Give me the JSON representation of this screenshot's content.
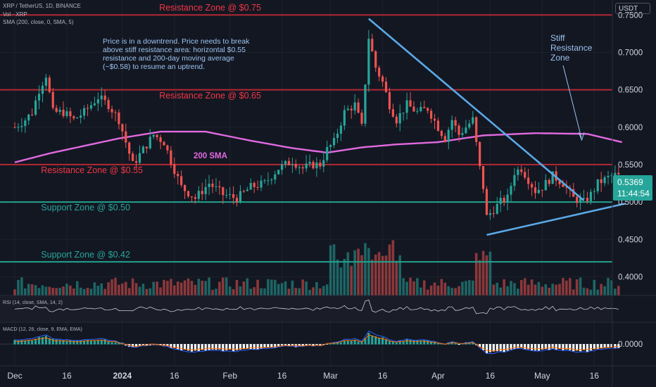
{
  "header": {
    "symbol_line": "XRP / TetherUS, 1D, BINANCE",
    "volume_indicator": "Vol · XRP",
    "sma_indicator": "SMA (200, close, 0, SMA, 5)",
    "currency": "USDT"
  },
  "annotations": {
    "main_note": "Price is in a downtrend. Price needs to break\nabove stiff resistance area: horizontal $0.55\nresistance and 200-day moving average\n(~$0.58) to resume an uptrend.",
    "stiff_note": "Stiff\nResistance\nZone",
    "sma_label": "200 SMA"
  },
  "zones": [
    {
      "label": "Resistance Zone @ $0.75",
      "price": 0.75,
      "color": "#b22833",
      "text_color": "#f23645",
      "label_x_frac": 0.26,
      "label_below": false
    },
    {
      "label": "Resistance Zone @ $0.65",
      "price": 0.65,
      "color": "#b22833",
      "text_color": "#f23645",
      "label_x_frac": 0.26,
      "label_below": true
    },
    {
      "label": "Resistance Zone @ $0.55",
      "price": 0.55,
      "color": "#b22833",
      "text_color": "#f23645",
      "label_x_frac": 0.067,
      "label_below": true
    },
    {
      "label": "Support Zone @ $0.50",
      "price": 0.5,
      "color": "#22a28d",
      "text_color": "#26a69a",
      "label_x_frac": 0.067,
      "label_below": true
    },
    {
      "label": "Support Zone @ $0.42",
      "price": 0.42,
      "color": "#22a28d",
      "text_color": "#26a69a",
      "label_x_frac": 0.067,
      "label_below": false
    }
  ],
  "price_badge": {
    "price": "0.5369",
    "countdown": "11:44:54",
    "color": "#26a69a"
  },
  "rsi_pane": {
    "label": "RSI (14, close, SMA, 14, 2)"
  },
  "macd_pane": {
    "label": "MACD (12, 26, close, 9, EMA, EMA)",
    "zero_label": "0.0000"
  },
  "chart_data": {
    "type": "candlestick",
    "symbol": "XRP / TetherUS",
    "interval": "1D",
    "exchange": "BINANCE",
    "ylim": [
      0.375,
      0.77
    ],
    "yticks": [
      "0.7500",
      "0.7000",
      "0.6500",
      "0.6000",
      "0.5500",
      "0.5000",
      "0.4500",
      "0.4000"
    ],
    "xticks": [
      {
        "label": "Dec",
        "day": 0
      },
      {
        "label": "16",
        "day": 15
      },
      {
        "label": "2024",
        "day": 31
      },
      {
        "label": "16",
        "day": 46
      },
      {
        "label": "Feb",
        "day": 62
      },
      {
        "label": "16",
        "day": 77
      },
      {
        "label": "Mar",
        "day": 91
      },
      {
        "label": "16",
        "day": 106
      },
      {
        "label": "Apr",
        "day": 122
      },
      {
        "label": "16",
        "day": 137
      },
      {
        "label": "May",
        "day": 152
      },
      {
        "label": "16",
        "day": 167
      }
    ],
    "close_anchors": [
      [
        0,
        0.6
      ],
      [
        3,
        0.61
      ],
      [
        5,
        0.62
      ],
      [
        7,
        0.65
      ],
      [
        9,
        0.67
      ],
      [
        11,
        0.62
      ],
      [
        14,
        0.62
      ],
      [
        17,
        0.61
      ],
      [
        20,
        0.62
      ],
      [
        24,
        0.64
      ],
      [
        27,
        0.63
      ],
      [
        30,
        0.61
      ],
      [
        32,
        0.58
      ],
      [
        34,
        0.55
      ],
      [
        37,
        0.57
      ],
      [
        40,
        0.59
      ],
      [
        43,
        0.58
      ],
      [
        45,
        0.555
      ],
      [
        48,
        0.52
      ],
      [
        52,
        0.505
      ],
      [
        56,
        0.525
      ],
      [
        60,
        0.51
      ],
      [
        64,
        0.505
      ],
      [
        68,
        0.52
      ],
      [
        72,
        0.525
      ],
      [
        76,
        0.545
      ],
      [
        80,
        0.555
      ],
      [
        83,
        0.545
      ],
      [
        86,
        0.55
      ],
      [
        88,
        0.55
      ],
      [
        90,
        0.57
      ],
      [
        92,
        0.58
      ],
      [
        95,
        0.62
      ],
      [
        98,
        0.63
      ],
      [
        100,
        0.6
      ],
      [
        102,
        0.72
      ],
      [
        104,
        0.68
      ],
      [
        106,
        0.66
      ],
      [
        108,
        0.63
      ],
      [
        110,
        0.61
      ],
      [
        113,
        0.63
      ],
      [
        116,
        0.62
      ],
      [
        119,
        0.625
      ],
      [
        122,
        0.6
      ],
      [
        124,
        0.585
      ],
      [
        126,
        0.61
      ],
      [
        128,
        0.59
      ],
      [
        130,
        0.6
      ],
      [
        132,
        0.61
      ],
      [
        134,
        0.545
      ],
      [
        135,
        0.52
      ],
      [
        136,
        0.48
      ],
      [
        138,
        0.49
      ],
      [
        140,
        0.5
      ],
      [
        142,
        0.505
      ],
      [
        144,
        0.54
      ],
      [
        146,
        0.545
      ],
      [
        148,
        0.53
      ],
      [
        150,
        0.515
      ],
      [
        152,
        0.52
      ],
      [
        155,
        0.535
      ],
      [
        158,
        0.525
      ],
      [
        161,
        0.505
      ],
      [
        164,
        0.5
      ],
      [
        166,
        0.51
      ],
      [
        168,
        0.525
      ],
      [
        170,
        0.53
      ],
      [
        172,
        0.535
      ],
      [
        174,
        0.5369
      ]
    ],
    "sma200_anchors": [
      [
        0,
        0.553
      ],
      [
        10,
        0.565
      ],
      [
        20,
        0.575
      ],
      [
        30,
        0.585
      ],
      [
        42,
        0.594
      ],
      [
        55,
        0.594
      ],
      [
        68,
        0.582
      ],
      [
        80,
        0.572
      ],
      [
        90,
        0.566
      ],
      [
        100,
        0.573
      ],
      [
        110,
        0.577
      ],
      [
        122,
        0.58
      ],
      [
        135,
        0.589
      ],
      [
        150,
        0.592
      ],
      [
        165,
        0.591
      ],
      [
        175,
        0.58
      ]
    ],
    "trendlines": [
      {
        "name": "descending",
        "from": [
          102,
          0.745
        ],
        "to": [
          164,
          0.502
        ],
        "color": "#5aa9e6"
      },
      {
        "name": "ascending",
        "from": [
          136,
          0.456
        ],
        "to": [
          176,
          0.498
        ],
        "color": "#5aa9e6"
      }
    ],
    "last_close": 0.5369
  }
}
